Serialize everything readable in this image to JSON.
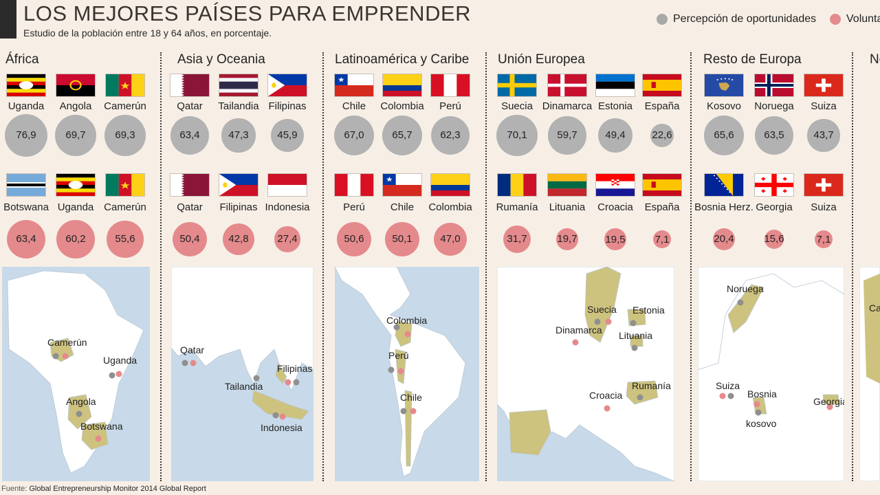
{
  "header": {
    "title": "LOS MEJORES PAÍSES PARA EMPRENDER",
    "subtitle": "Estudio de la población entre 18 y 64 años, en porcentaje.",
    "legend": [
      {
        "label": "Percepción de oportunidades",
        "color": "#a8a8a8"
      },
      {
        "label": "Volunta",
        "color": "#e58a8c"
      }
    ]
  },
  "colors": {
    "grey": "#b2b2b2",
    "red": "#e58a8c",
    "land": "#ffffff",
    "sea": "#c8dae9",
    "highlight": "#cdc37e"
  },
  "regions": [
    {
      "name": "África"
    },
    {
      "name": "Asia y Oceania"
    },
    {
      "name": "Latinoamérica y Caribe"
    },
    {
      "name": "Unión Europea"
    },
    {
      "name": "Resto de Europa"
    },
    {
      "name": "No"
    }
  ],
  "chart_data": [
    {
      "type": "bubble",
      "region": "África",
      "metric": "Percepción de oportunidades",
      "categories": [
        "Uganda",
        "Angola",
        "Camerún"
      ],
      "values": [
        76.9,
        69.7,
        69.3
      ],
      "labels": [
        "76,9",
        "69,7",
        "69,3"
      ]
    },
    {
      "type": "bubble",
      "region": "África",
      "metric": "Volunta",
      "categories": [
        "Botswana",
        "Uganda",
        "Camerún"
      ],
      "values": [
        63.4,
        60.2,
        55.6
      ],
      "labels": [
        "63,4",
        "60,2",
        "55,6"
      ]
    },
    {
      "type": "bubble",
      "region": "Asia y Oceania",
      "metric": "Percepción de oportunidades",
      "categories": [
        "Qatar",
        "Tailandia",
        "Filipinas"
      ],
      "values": [
        63.4,
        47.3,
        45.9
      ],
      "labels": [
        "63,4",
        "47,3",
        "45,9"
      ]
    },
    {
      "type": "bubble",
      "region": "Asia y Oceania",
      "metric": "Volunta",
      "categories": [
        "Qatar",
        "Filipinas",
        "Indonesia"
      ],
      "values": [
        50.4,
        42.8,
        27.4
      ],
      "labels": [
        "50,4",
        "42,8",
        "27,4"
      ]
    },
    {
      "type": "bubble",
      "region": "Latinoamérica y Caribe",
      "metric": "Percepción de oportunidades",
      "categories": [
        "Chile",
        "Colombia",
        "Perú"
      ],
      "values": [
        67.0,
        65.7,
        62.3
      ],
      "labels": [
        "67,0",
        "65,7",
        "62,3"
      ]
    },
    {
      "type": "bubble",
      "region": "Latinoamérica y Caribe",
      "metric": "Volunta",
      "categories": [
        "Perú",
        "Chile",
        "Colombia"
      ],
      "values": [
        50.6,
        50.1,
        47.0
      ],
      "labels": [
        "50,6",
        "50,1",
        "47,0"
      ]
    },
    {
      "type": "bubble",
      "region": "Unión Europea",
      "metric": "Percepción de oportunidades",
      "categories": [
        "Suecia",
        "Dinamarca",
        "Estonia",
        "España"
      ],
      "values": [
        70.1,
        59.7,
        49.4,
        22.6
      ],
      "labels": [
        "70,1",
        "59,7",
        "49,4",
        "22,6"
      ]
    },
    {
      "type": "bubble",
      "region": "Unión Europea",
      "metric": "Volunta",
      "categories": [
        "Rumanía",
        "Lituania",
        "Croacia",
        "España"
      ],
      "values": [
        31.7,
        19.7,
        19.5,
        7.1
      ],
      "labels": [
        "31,7",
        "19,7",
        "19,5",
        "7,1"
      ]
    },
    {
      "type": "bubble",
      "region": "Resto de Europa",
      "metric": "Percepción de oportunidades",
      "categories": [
        "Kosovo",
        "Noruega",
        "Suiza"
      ],
      "values": [
        65.6,
        63.5,
        43.7
      ],
      "labels": [
        "65,6",
        "63,5",
        "43,7"
      ]
    },
    {
      "type": "bubble",
      "region": "Resto de Europa",
      "metric": "Volunta",
      "categories": [
        "Bosnia Herz.",
        "Georgia",
        "Suiza"
      ],
      "values": [
        20.4,
        15.6,
        7.1
      ],
      "labels": [
        "20,4",
        "15,6",
        "7,1"
      ]
    }
  ],
  "maps": [
    {
      "region": "África",
      "labels": [
        "Camerún",
        "Uganda",
        "Angola",
        "Botswana"
      ]
    },
    {
      "region": "Asia y Oceania",
      "labels": [
        "Qatar",
        "Filipinas",
        "Tailandia",
        "Indonesia"
      ]
    },
    {
      "region": "Latinoamérica y Caribe",
      "labels": [
        "Colombia",
        "Perú",
        "Chile"
      ]
    },
    {
      "region": "Unión Europea",
      "labels": [
        "Suecia",
        "Estonia",
        "Dinamarca",
        "Lituania",
        "Croacia",
        "Rumanía"
      ]
    },
    {
      "region": "Resto de Europa",
      "labels": [
        "Noruega",
        "Suiza",
        "Bosnia",
        "kosovo",
        "Georgia"
      ]
    },
    {
      "region": "No",
      "labels": [
        "Ca"
      ]
    }
  ],
  "footer": {
    "source_prefix": "Fuente:",
    "source_text": "Global Entrepreneurship Monitor 2014 Global Report"
  }
}
